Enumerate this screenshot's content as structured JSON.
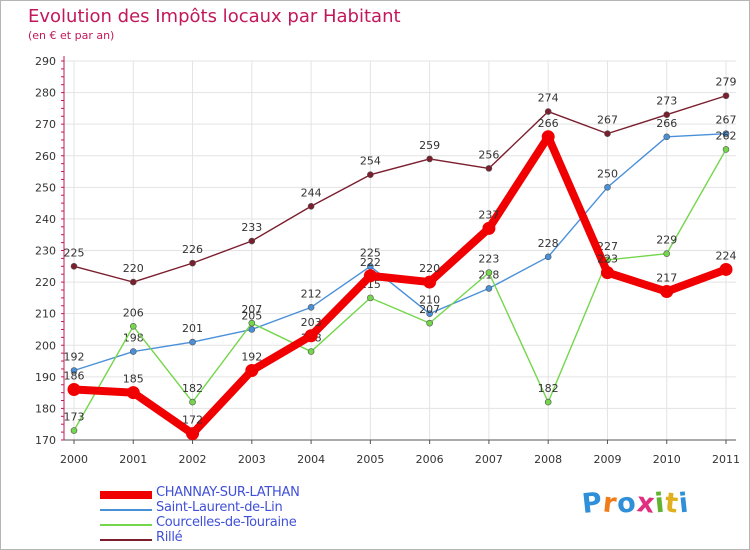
{
  "title": "Evolution des Impôts locaux par Habitant",
  "subtitle": "(en € et par an)",
  "brand": {
    "text": "Proxiti",
    "colors": [
      "#2f8fd8",
      "#f07c1a",
      "#2f8fd8",
      "#e02f7f",
      "#62b430",
      "#e0b020",
      "#2f8fd8"
    ]
  },
  "chart_data": {
    "type": "line",
    "title": "Evolution des Impôts locaux par Habitant",
    "subtitle": "(en € et par an)",
    "xlabel": "",
    "ylabel": "",
    "ylim": [
      170,
      290
    ],
    "y_ticks": [
      170,
      180,
      190,
      200,
      210,
      220,
      230,
      240,
      250,
      260,
      270,
      280,
      290
    ],
    "x": [
      "2000",
      "2001",
      "2002",
      "2003",
      "2004",
      "2005",
      "2006",
      "2007",
      "2008",
      "2009",
      "2010",
      "2011"
    ],
    "grid": true,
    "legend_position": "bottom-left",
    "series": [
      {
        "name": "Rillé",
        "color": "#7b1e2e",
        "values": [
          225,
          220,
          226,
          233,
          244,
          254,
          259,
          256,
          274,
          267,
          273,
          279
        ]
      },
      {
        "name": "Saint-Laurent-de-Lin",
        "color": "#4a90d9",
        "values": [
          192,
          198,
          201,
          205,
          212,
          225,
          210,
          218,
          228,
          250,
          266,
          267
        ]
      },
      {
        "name": "Courcelles-de-Touraine",
        "color": "#74d64a",
        "values": [
          173,
          206,
          182,
          207,
          198,
          215,
          207,
          223,
          182,
          227,
          229,
          262
        ]
      },
      {
        "name": "CHANNAY-SUR-LATHAN",
        "color": "#f00000",
        "values": [
          186,
          185,
          172,
          192,
          203,
          222,
          220,
          237,
          266,
          223,
          217,
          224
        ]
      }
    ],
    "legend_order": [
      "CHANNAY-SUR-LATHAN",
      "Saint-Laurent-de-Lin",
      "Courcelles-de-Touraine",
      "Rillé"
    ]
  }
}
